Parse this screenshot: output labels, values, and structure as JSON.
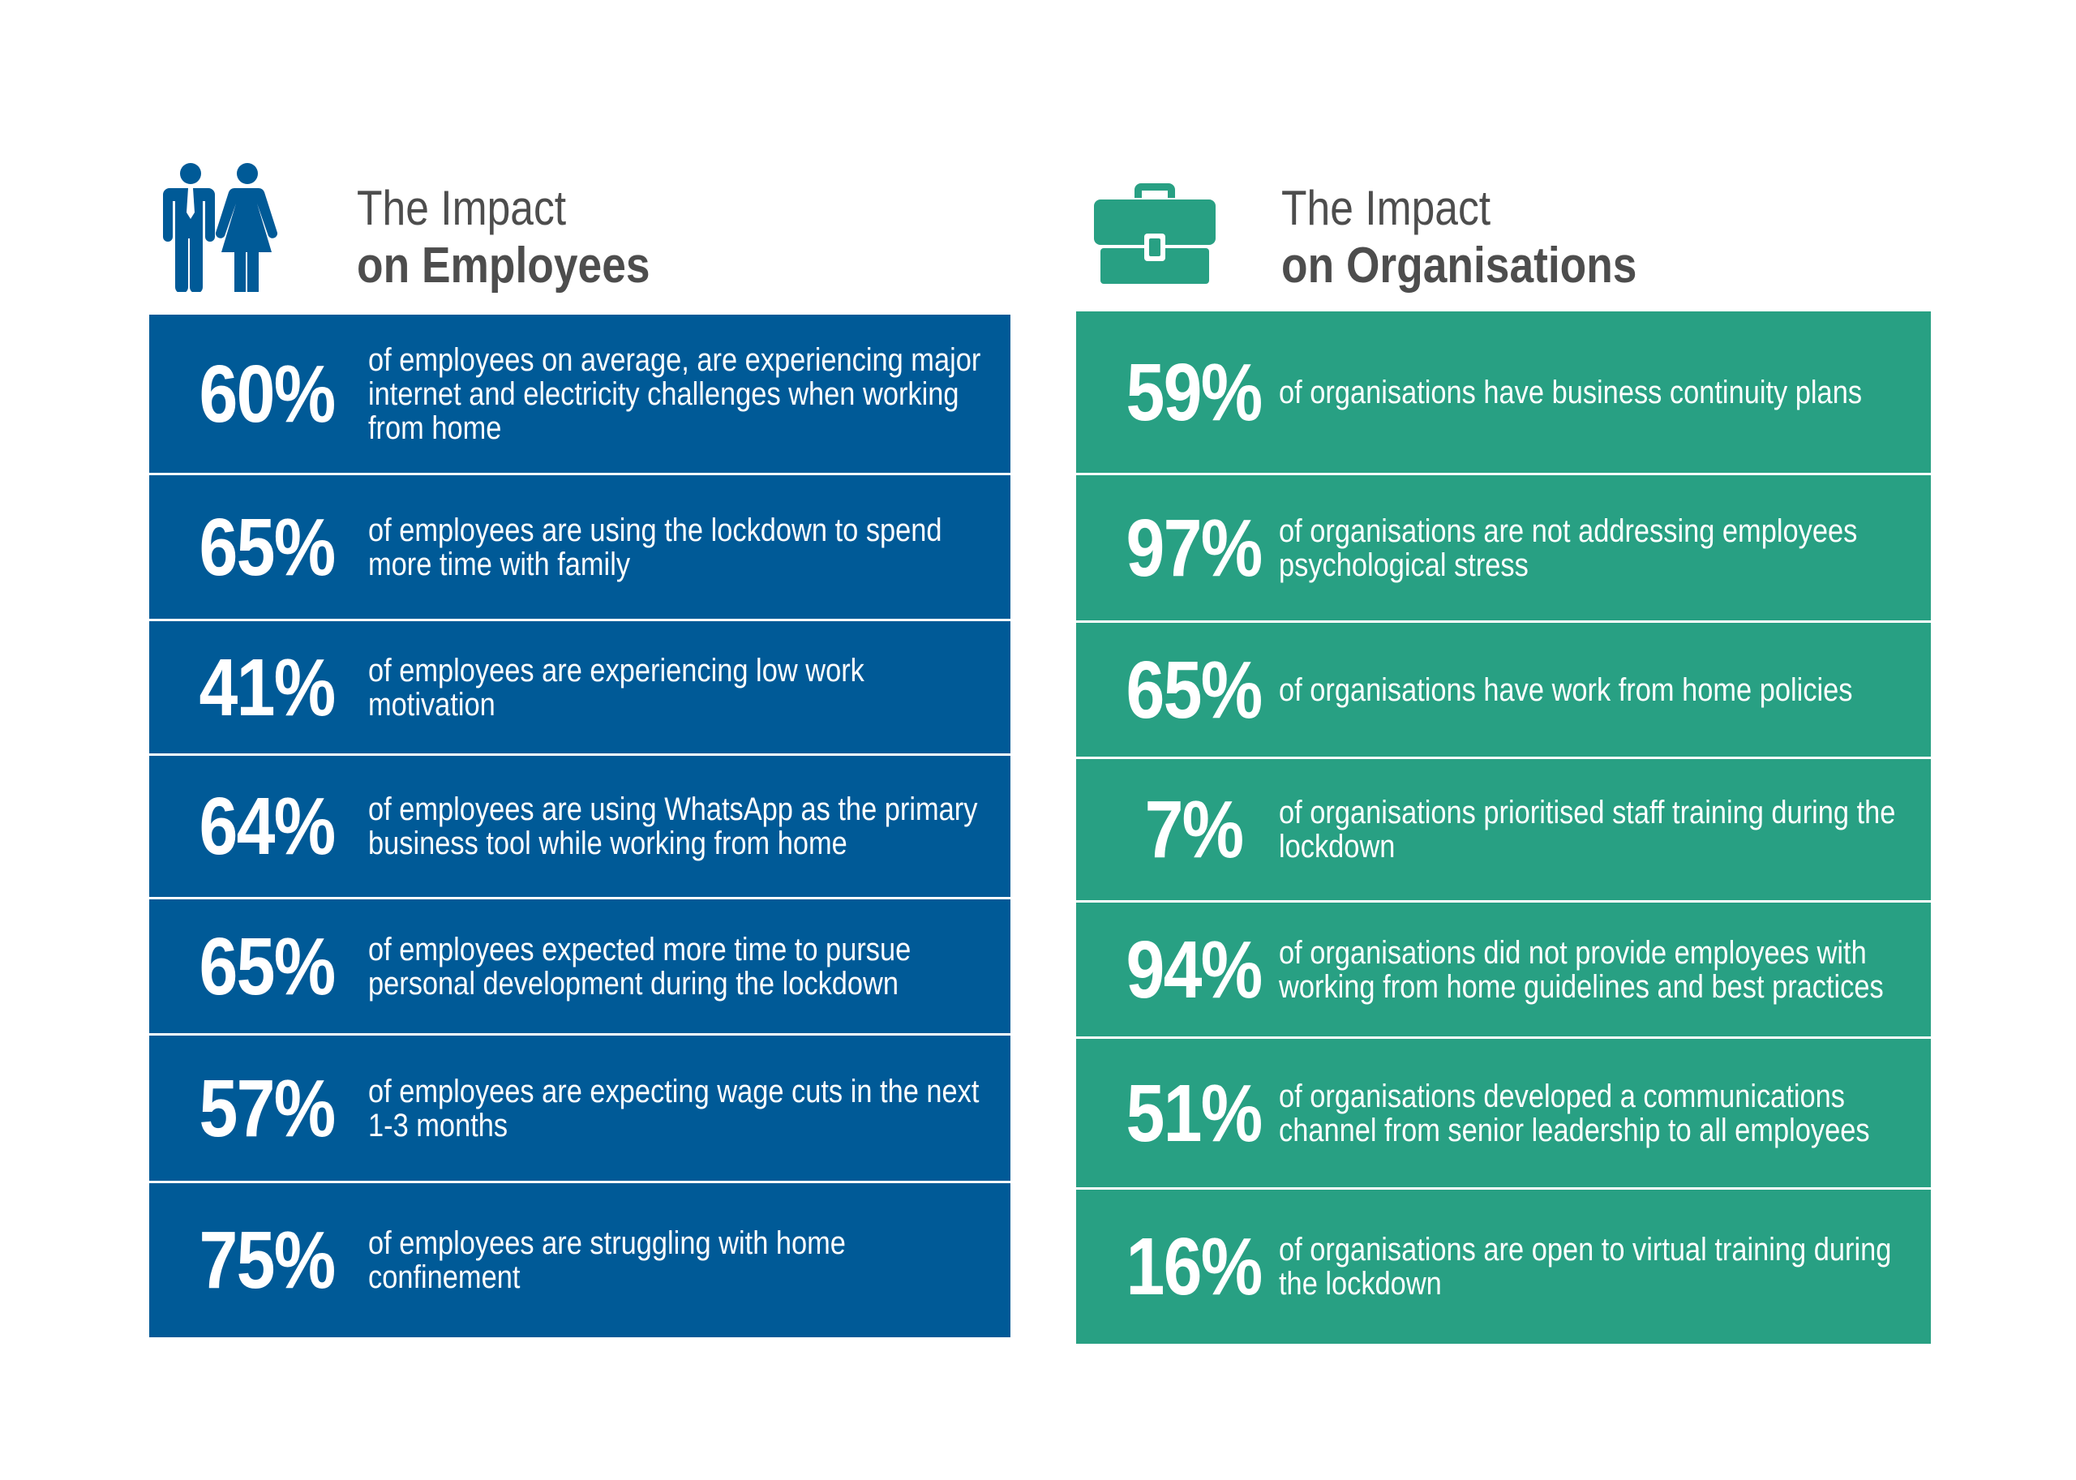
{
  "colors": {
    "blue": "#005a97",
    "green": "#28a083",
    "heading": "#4d4d4d"
  },
  "employees": {
    "icon": "people-icon",
    "title_line1": "The Impact",
    "title_line2": "on Employees",
    "rows": [
      {
        "pct": "60%",
        "text": "of employees on average, are experiencing major internet and electricity challenges when working from home"
      },
      {
        "pct": "65%",
        "text": "of employees are using the lockdown to spend more time with family"
      },
      {
        "pct": "41%",
        "text": "of employees are experiencing low work motivation"
      },
      {
        "pct": "64%",
        "text": "of employees are using WhatsApp as the primary business tool while working from home"
      },
      {
        "pct": "65%",
        "text": "of employees expected more time to pursue personal development during the lockdown"
      },
      {
        "pct": "57%",
        "text": "of employees are expecting wage cuts in the next 1-3 months"
      },
      {
        "pct": "75%",
        "text": "of employees are struggling with home confinement"
      }
    ]
  },
  "organisations": {
    "icon": "briefcase-icon",
    "title_line1": "The Impact",
    "title_line2": "on Organisations",
    "rows": [
      {
        "pct": "59%",
        "text": "of organisations have business continuity plans"
      },
      {
        "pct": "97%",
        "text": "of organisations are not addressing employees psychological stress"
      },
      {
        "pct": "65%",
        "text": "of organisations have work from home policies"
      },
      {
        "pct": "7%",
        "text": "of organisations prioritised staff training during the lockdown"
      },
      {
        "pct": "94%",
        "text": "of organisations did not provide employees with working from home guidelines and best practices"
      },
      {
        "pct": "51%",
        "text": "of organisations developed a communications channel from senior leadership to all employees"
      },
      {
        "pct": "16%",
        "text": "of organisations are open to virtual training during the lockdown"
      }
    ]
  }
}
